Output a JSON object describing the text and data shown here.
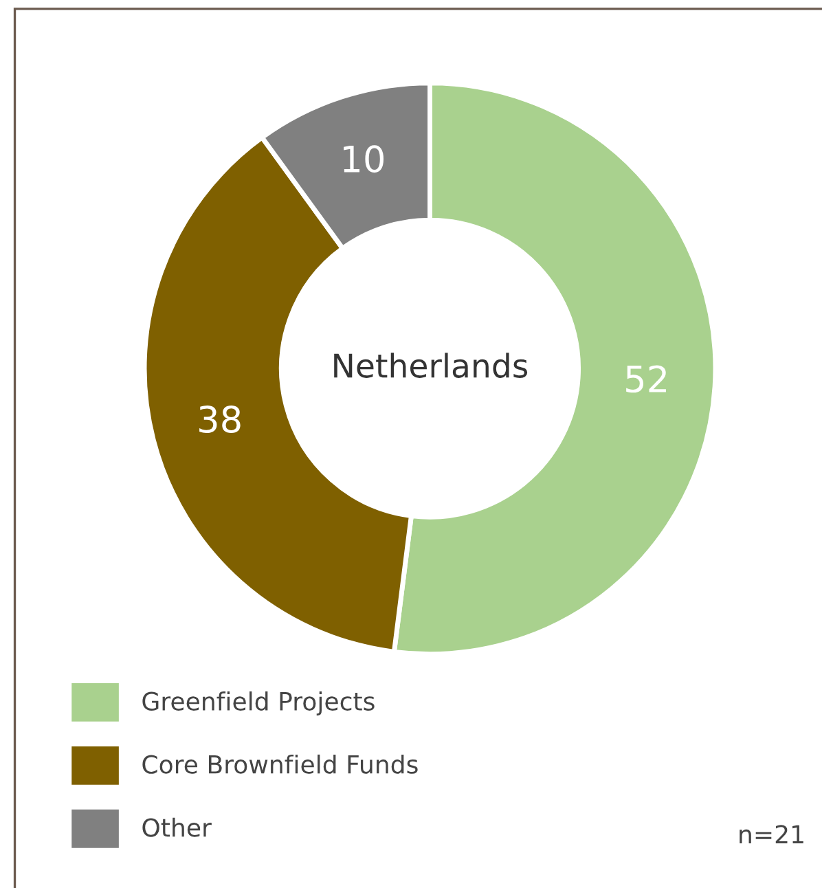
{
  "chart_data": {
    "type": "donut",
    "title": "Netherlands",
    "categories": [
      "Greenfield Projects",
      "Core Brownfield Funds",
      "Other"
    ],
    "values": [
      52,
      38,
      10
    ],
    "colors": [
      "#a9d18e",
      "#7f6000",
      "#808080"
    ],
    "data_labels": true,
    "legend": "bottom left",
    "annotations": [
      "n=21"
    ]
  }
}
